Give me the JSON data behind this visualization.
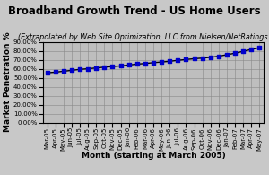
{
  "title": "Broadband Growth Trend - US Home Users",
  "subtitle": "(Extrapolated by Web Site Optimization, LLC from Nielsen/NetRatings data)",
  "xlabel": "Month (starting at March 2005)",
  "ylabel": "Market Penetration %",
  "x_labels": [
    "Mar-05",
    "Apr-05",
    "May-05",
    "Jun-05",
    "Jul-05",
    "Aug-05",
    "Sep-05",
    "Oct-05",
    "Nov-05",
    "Dec-05",
    "Jan-06",
    "Feb-06",
    "Mar-06",
    "Apr-06",
    "May-06",
    "Jun-06",
    "Jul-06",
    "Aug-06",
    "Sep-06",
    "Oct-06",
    "Nov-06",
    "Dec-06",
    "Jan-07",
    "Feb-07",
    "Mar-07",
    "Apr-07",
    "May-07"
  ],
  "y_values": [
    0.556,
    0.562,
    0.573,
    0.583,
    0.594,
    0.601,
    0.61,
    0.619,
    0.626,
    0.633,
    0.643,
    0.653,
    0.66,
    0.669,
    0.676,
    0.684,
    0.695,
    0.704,
    0.713,
    0.72,
    0.729,
    0.741,
    0.758,
    0.775,
    0.796,
    0.817,
    0.837
  ],
  "ylim": [
    0.0,
    0.9
  ],
  "yticks": [
    0.0,
    0.1,
    0.2,
    0.3,
    0.4,
    0.5,
    0.6,
    0.7,
    0.8,
    0.9
  ],
  "line_color": "#000000",
  "marker_color": "#0000CC",
  "bg_color": "#C8C8C8",
  "plot_bg_color": "#BEBEBE",
  "title_fontsize": 8.5,
  "subtitle_fontsize": 5.8,
  "axis_label_fontsize": 6.5,
  "tick_fontsize": 5.0
}
